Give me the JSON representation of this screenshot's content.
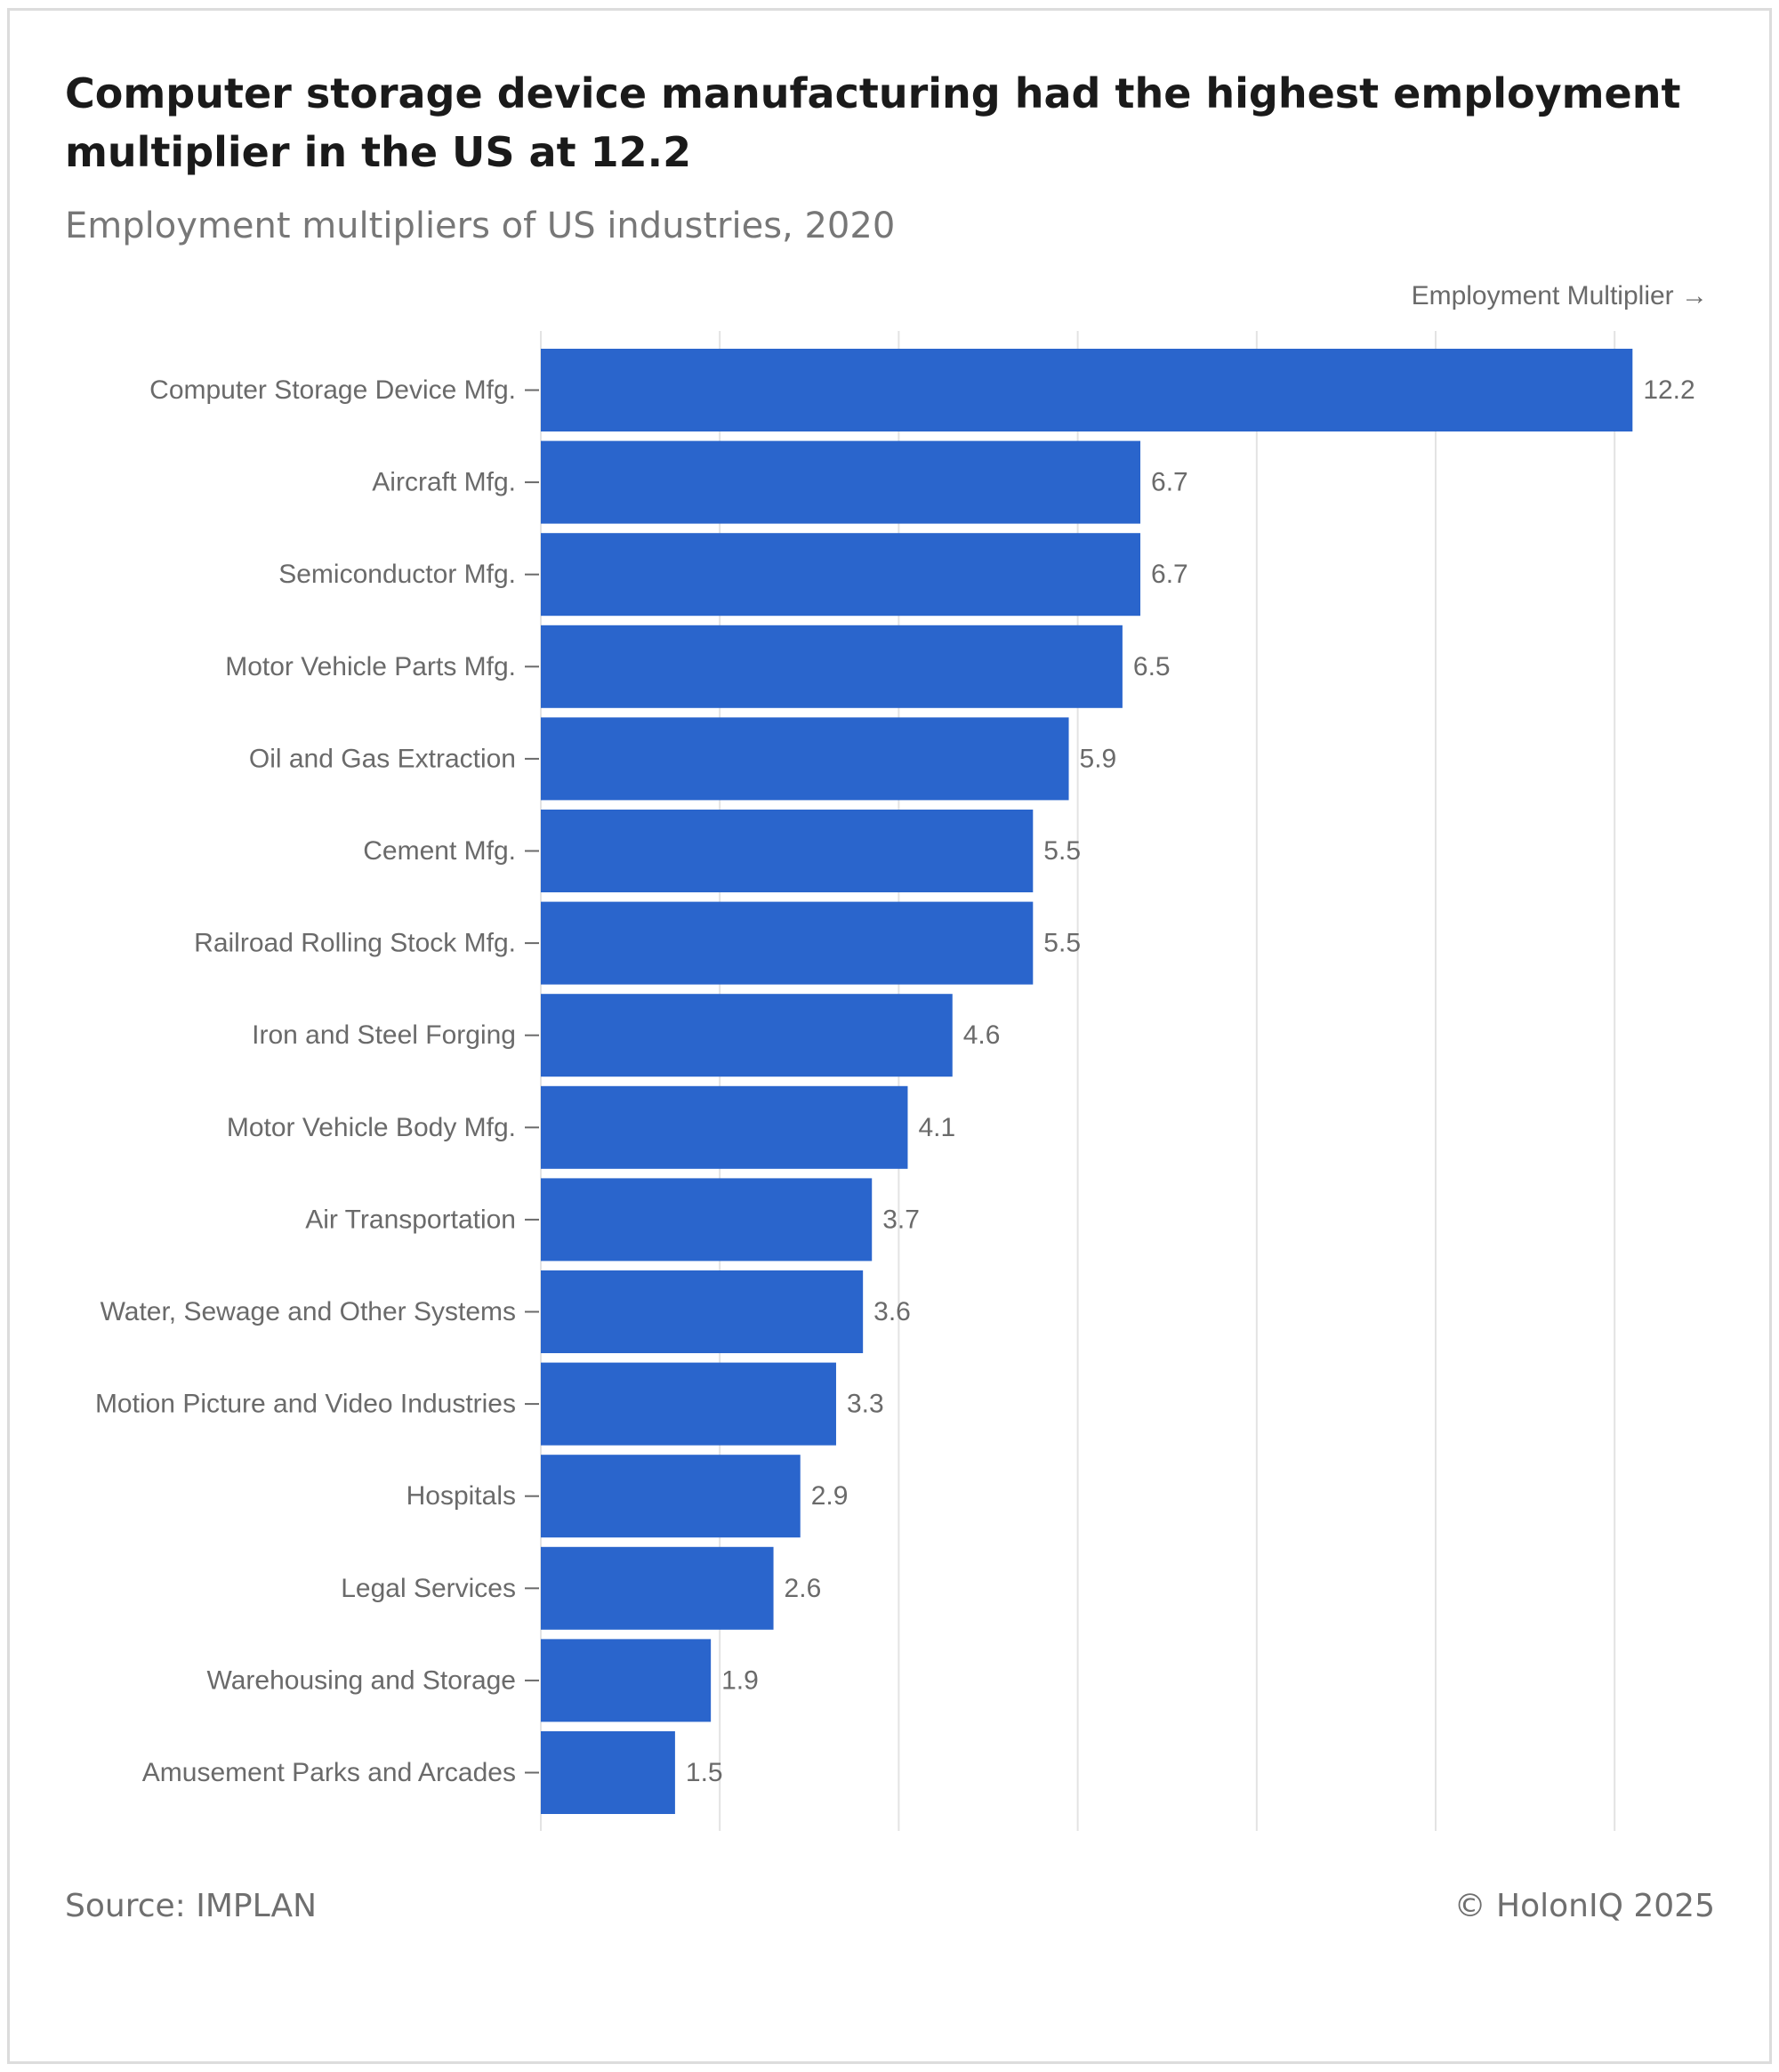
{
  "header": {
    "title": "Computer storage device manufacturing had the highest employment multiplier in the US at 12.2",
    "subtitle": "Employment multipliers of US industries, 2020"
  },
  "footer": {
    "source": "Source: IMPLAN",
    "copyright": "© HolonIQ 2025"
  },
  "colors": {
    "bar": "#2a65cc",
    "grid": "#e3e3e3",
    "label": "#6a6a6a"
  },
  "chart_data": {
    "type": "bar",
    "orientation": "horizontal",
    "xlabel": "Employment Multiplier →",
    "ylabel": "",
    "xlim": [
      0,
      13
    ],
    "grid": true,
    "legend": "none",
    "categories": [
      "Computer Storage Device Mfg.",
      "Aircraft Mfg.",
      "Semiconductor Mfg.",
      "Motor Vehicle Parts Mfg.",
      "Oil and Gas Extraction",
      "Cement Mfg.",
      "Railroad Rolling Stock Mfg.",
      "Iron and Steel Forging",
      "Motor Vehicle Body Mfg.",
      "Air Transportation",
      "Water, Sewage and Other Systems",
      "Motion Picture and Video Industries",
      "Hospitals",
      "Legal Services",
      "Warehousing and Storage",
      "Amusement Parks and Arcades"
    ],
    "values": [
      12.2,
      6.7,
      6.7,
      6.5,
      5.9,
      5.5,
      5.5,
      4.6,
      4.1,
      3.7,
      3.6,
      3.3,
      2.9,
      2.6,
      1.9,
      1.5
    ],
    "value_labels": [
      "12.2",
      "6.7",
      "6.7",
      "6.5",
      "5.9",
      "5.5",
      "5.5",
      "4.6",
      "4.1",
      "3.7",
      "3.6",
      "3.3",
      "2.9",
      "2.6",
      "1.9",
      "1.5"
    ]
  }
}
